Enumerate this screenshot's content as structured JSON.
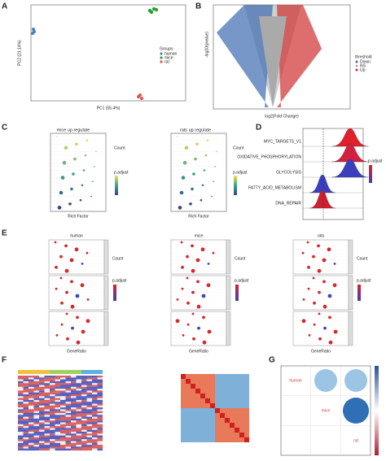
{
  "panels": {
    "a": {
      "label": "A",
      "x_label": "PC1 (55.4%)",
      "y_label": "PC2 (21.14%)",
      "legend_title": "Groups",
      "legend": [
        "human",
        "mice",
        "rat"
      ]
    },
    "b": {
      "label": "B",
      "x_label": "log2(Fold Change)",
      "y_label": "-log10(pvalue)",
      "legend_title": "threshold",
      "legend": [
        "Down",
        "NS",
        "Up"
      ]
    },
    "c": {
      "label": "C",
      "titles": [
        "mice up regulate",
        "rats up regulate"
      ],
      "x_label": "Rich Factor",
      "legend_titles": [
        "Count",
        "p.adjust"
      ]
    },
    "d": {
      "label": "D",
      "pathways": [
        "MYC_TARGETS_V1",
        "OXIDATIVE_PHOSPHORYLATION",
        "GLYCOLYSIS",
        "FATTY_ACID_METABOLISM",
        "DNA_REPAIR"
      ],
      "legend_title": "p.adjust"
    },
    "e": {
      "label": "E",
      "groups": [
        "human",
        "mice",
        "rats"
      ],
      "x_label": "GeneRatio",
      "legend_titles": [
        "Count",
        "p.adjust"
      ]
    },
    "f": {
      "label": "F"
    },
    "g": {
      "label": "G",
      "labels": [
        "human",
        "mice",
        "rat"
      ]
    }
  }
}
